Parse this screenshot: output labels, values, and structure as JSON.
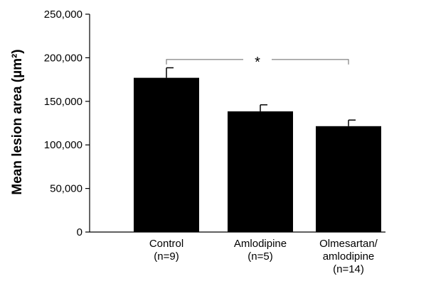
{
  "chart_data": {
    "type": "bar",
    "title": "",
    "xlabel": "",
    "ylabel": "Mean lesion area (µm²)",
    "ylim": [
      0,
      250000
    ],
    "yticks": [
      0,
      50000,
      100000,
      150000,
      200000,
      250000
    ],
    "ytick_labels": [
      "0",
      "50,000",
      "100,000",
      "150,000",
      "200,000",
      "250,000"
    ],
    "categories": [
      [
        "Control",
        "(n=9)"
      ],
      [
        "Amlodipine",
        "(n=5)"
      ],
      [
        "Olmesartan/",
        "amlodipine",
        "(n=14)"
      ]
    ],
    "values": [
      177000,
      138500,
      121500
    ],
    "error_upper": [
      188500,
      146000,
      128500
    ],
    "bar_color": "#000000",
    "grid": false,
    "significance": {
      "from": 0,
      "to": 2,
      "level": 198000,
      "label": "*"
    }
  }
}
